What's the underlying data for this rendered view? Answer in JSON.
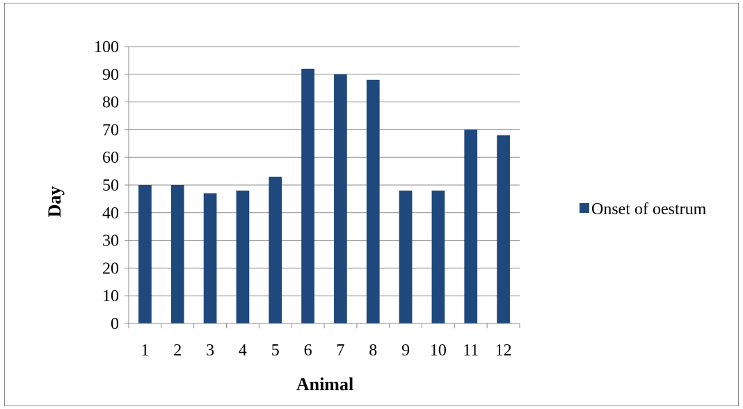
{
  "chart_data": {
    "type": "bar",
    "categories": [
      "1",
      "2",
      "3",
      "4",
      "5",
      "6",
      "7",
      "8",
      "9",
      "10",
      "11",
      "12"
    ],
    "series": [
      {
        "name": "Onset of oestrum",
        "values": [
          50,
          50,
          47,
          48,
          53,
          92,
          90,
          88,
          48,
          48,
          70,
          68
        ],
        "color": "#1f497d"
      }
    ],
    "title": "",
    "xlabel": "Animal",
    "ylabel": "Day",
    "ylim": [
      0,
      100
    ],
    "yticks": [
      "0",
      "10",
      "20",
      "30",
      "40",
      "50",
      "60",
      "70",
      "80",
      "90",
      "100"
    ],
    "grid": true,
    "legend_position": "right"
  }
}
